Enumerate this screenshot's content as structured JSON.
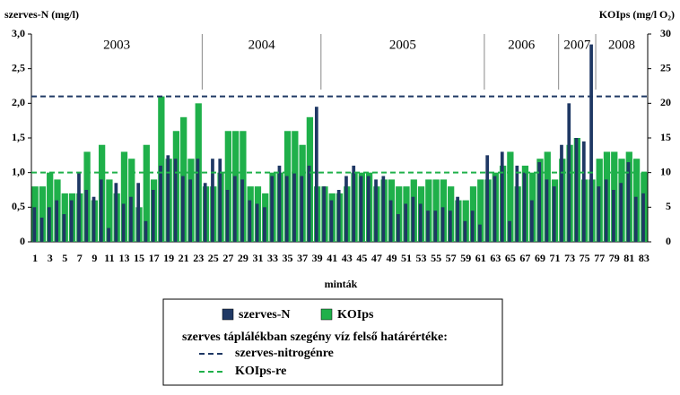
{
  "chart_data": {
    "type": "bar",
    "ylabel": "szerves-N (mg/l)",
    "y2label": "KOIps (mg/l O₂)",
    "xlabel": "minták",
    "categories": [
      1,
      null,
      3,
      null,
      5,
      null,
      7,
      null,
      9,
      null,
      11,
      null,
      13,
      null,
      15,
      null,
      17,
      null,
      19,
      null,
      21,
      null,
      23,
      null,
      25,
      null,
      27,
      null,
      29,
      null,
      31,
      null,
      33,
      null,
      35,
      null,
      37,
      null,
      39,
      null,
      41,
      null,
      43,
      null,
      45,
      null,
      47,
      null,
      49,
      null,
      51,
      null,
      53,
      null,
      55,
      null,
      57,
      null,
      59,
      null,
      61,
      null,
      63,
      null,
      65,
      null,
      67,
      null,
      69,
      null,
      71,
      null,
      73,
      null,
      75,
      null,
      77,
      null,
      79,
      null,
      81,
      null,
      83
    ],
    "series": [
      {
        "name": "KOIps",
        "color": "#1fb04a",
        "axis": "y2",
        "values": [
          8,
          8,
          10,
          9,
          7,
          7,
          7,
          13,
          6,
          14,
          9,
          7,
          13,
          12,
          5,
          14,
          9,
          21,
          12,
          16,
          18,
          12,
          20,
          8,
          8,
          10,
          16,
          16,
          16,
          8,
          8,
          7,
          10,
          10,
          16,
          16,
          14,
          18,
          8,
          8,
          7,
          7,
          8,
          10,
          10,
          10,
          8,
          9,
          9,
          8,
          8,
          9,
          8,
          9,
          9,
          9,
          8,
          6,
          6,
          8,
          9,
          9,
          10,
          11,
          13,
          8,
          11,
          10,
          12,
          13,
          9,
          12,
          14,
          15,
          9,
          9,
          12,
          13,
          13,
          12,
          13,
          12,
          10
        ]
      },
      {
        "name": "szerves-N",
        "color": "#1f3864",
        "values": [
          0.5,
          0.35,
          0.5,
          0.6,
          0.4,
          0.6,
          1.0,
          0.75,
          0.65,
          0.9,
          0.2,
          0.85,
          0.55,
          0.65,
          0.85,
          0.3,
          0.75,
          1.1,
          1.25,
          1.2,
          0.95,
          0.9,
          1.2,
          0.85,
          1.2,
          1.2,
          0.75,
          0.95,
          0.9,
          0.6,
          0.55,
          0.5,
          0.95,
          1.1,
          0.95,
          1.0,
          0.95,
          1.1,
          1.95,
          0.8,
          0.6,
          0.75,
          0.95,
          1.1,
          0.95,
          0.95,
          0.9,
          0.95,
          0.6,
          0.4,
          0.55,
          0.65,
          0.55,
          0.45,
          0.45,
          0.5,
          0.45,
          0.65,
          0.3,
          0.45,
          0.25,
          1.25,
          0.95,
          1.3,
          0.3,
          1.1,
          1.0,
          0.6,
          1.15,
          0.9,
          0.8,
          1.4,
          2.0,
          1.5,
          1.45,
          2.85,
          0.8,
          0.9,
          0.75,
          0.85,
          1.15,
          0.65,
          0.7
        ]
      }
    ],
    "ylim": [
      0,
      3
    ],
    "yticks": [
      0,
      {
        "value": 0.5,
        "label": "0,5"
      },
      {
        "value": 1,
        "label": "1,0"
      },
      {
        "value": 1.5,
        "label": "1,5"
      },
      {
        "value": 2,
        "label": "2,0"
      },
      {
        "value": 2.5,
        "label": "2,5"
      },
      {
        "value": 3,
        "label": "3,0"
      }
    ],
    "y2lim": [
      0,
      30
    ],
    "y2ticks": [
      0,
      5,
      10,
      15,
      20,
      25,
      30
    ],
    "thresholds": [
      {
        "name": "szerves-nitrogénre",
        "value": 2.1,
        "color": "#1f3864"
      },
      {
        "name": "KOIps-re",
        "value": 10,
        "axis": "y2",
        "color": "#1fb04a"
      }
    ],
    "threshold_title": "szerves táplálékban szegény víz felső határértéke:",
    "periods": [
      {
        "label": "2003",
        "from": 1,
        "to": 23
      },
      {
        "label": "2004",
        "from": 24,
        "to": 39
      },
      {
        "label": "2005",
        "from": 40,
        "to": 61
      },
      {
        "label": "2006",
        "from": 62,
        "to": 71
      },
      {
        "label": "2007",
        "from": 72,
        "to": 76
      },
      {
        "label": "2008",
        "from": 77,
        "to": 83
      }
    ]
  }
}
